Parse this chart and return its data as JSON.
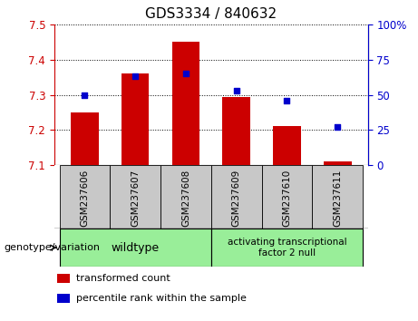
{
  "title": "GDS3334 / 840632",
  "samples": [
    "GSM237606",
    "GSM237607",
    "GSM237608",
    "GSM237609",
    "GSM237610",
    "GSM237611"
  ],
  "bar_values": [
    7.25,
    7.36,
    7.45,
    7.295,
    7.21,
    7.11
  ],
  "percentile_values": [
    50,
    63,
    65,
    53,
    46,
    27
  ],
  "bar_bottom": 7.1,
  "left_ylim": [
    7.1,
    7.5
  ],
  "right_ylim": [
    0,
    100
  ],
  "left_yticks": [
    7.1,
    7.2,
    7.3,
    7.4,
    7.5
  ],
  "right_yticks": [
    0,
    25,
    50,
    75,
    100
  ],
  "right_yticklabels": [
    "0",
    "25",
    "50",
    "75",
    "100%"
  ],
  "bar_color": "#cc0000",
  "dot_color": "#0000cc",
  "bg_plot": "#ffffff",
  "xtick_bg_color": "#c8c8c8",
  "wildtype_label": "wildtype",
  "mutant_label": "activating transcriptional\nfactor 2 null",
  "group_bg_color": "#99ee99",
  "legend_bar_label": "transformed count",
  "legend_dot_label": "percentile rank within the sample",
  "genotype_label": "genotype/variation",
  "title_fontsize": 11,
  "tick_fontsize": 8.5,
  "label_fontsize": 9,
  "sample_fontsize": 7.5,
  "legend_fontsize": 8
}
